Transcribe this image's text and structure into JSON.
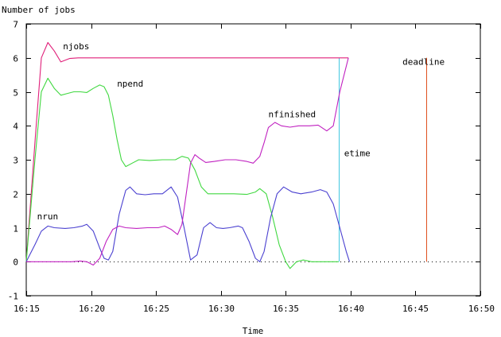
{
  "chart_data": {
    "type": "line",
    "title": "",
    "ylabel": "Number of jobs",
    "xlabel": "Time",
    "xlim": [
      "16:15",
      "16:50"
    ],
    "ylim": [
      -1,
      7
    ],
    "grid": false,
    "xticks": [
      "16:15",
      "16:20",
      "16:25",
      "16:30",
      "16:35",
      "16:40",
      "16:45",
      "16:50"
    ],
    "yticks": [
      "-1",
      "0",
      "1",
      "2",
      "3",
      "4",
      "5",
      "6",
      "7"
    ],
    "zero_line": "dotted",
    "series": [
      {
        "name": "njobs",
        "color": "#e0207a",
        "points": [
          [
            "16:15:00",
            0
          ],
          [
            "16:15:40",
            3.5
          ],
          [
            "16:16:10",
            6.0
          ],
          [
            "16:16:40",
            6.45
          ],
          [
            "16:17:10",
            6.2
          ],
          [
            "16:17:40",
            5.88
          ],
          [
            "16:18:20",
            5.98
          ],
          [
            "16:19:00",
            6.0
          ],
          [
            "16:39:50",
            6.0
          ]
        ]
      },
      {
        "name": "npend",
        "color": "#40d840",
        "points": [
          [
            "16:15:00",
            0
          ],
          [
            "16:15:40",
            3.0
          ],
          [
            "16:16:10",
            5.0
          ],
          [
            "16:16:40",
            5.4
          ],
          [
            "16:17:10",
            5.1
          ],
          [
            "16:17:40",
            4.9
          ],
          [
            "16:18:10",
            4.95
          ],
          [
            "16:18:40",
            5.0
          ],
          [
            "16:19:10",
            5.0
          ],
          [
            "16:19:40",
            4.98
          ],
          [
            "16:20:10",
            5.1
          ],
          [
            "16:20:40",
            5.2
          ],
          [
            "16:21:00",
            5.15
          ],
          [
            "16:21:20",
            4.9
          ],
          [
            "16:21:40",
            4.3
          ],
          [
            "16:22:00",
            3.6
          ],
          [
            "16:22:20",
            3.0
          ],
          [
            "16:22:40",
            2.8
          ],
          [
            "16:23:10",
            2.9
          ],
          [
            "16:23:40",
            3.0
          ],
          [
            "16:24:30",
            2.98
          ],
          [
            "16:25:30",
            3.0
          ],
          [
            "16:26:30",
            3.0
          ],
          [
            "16:27:00",
            3.1
          ],
          [
            "16:27:30",
            3.05
          ],
          [
            "16:28:00",
            2.7
          ],
          [
            "16:28:30",
            2.2
          ],
          [
            "16:29:00",
            2.0
          ],
          [
            "16:30:00",
            2.0
          ],
          [
            "16:31:00",
            2.0
          ],
          [
            "16:32:00",
            1.98
          ],
          [
            "16:32:40",
            2.05
          ],
          [
            "16:33:00",
            2.15
          ],
          [
            "16:33:30",
            2.0
          ],
          [
            "16:34:00",
            1.3
          ],
          [
            "16:34:30",
            0.5
          ],
          [
            "16:35:00",
            0.0
          ],
          [
            "16:35:20",
            -0.2
          ],
          [
            "16:35:50",
            0.0
          ],
          [
            "16:36:20",
            0.05
          ],
          [
            "16:37:00",
            0.0
          ],
          [
            "16:39:05",
            0.0
          ]
        ]
      },
      {
        "name": "nrun",
        "color": "#4a40d0",
        "points": [
          [
            "16:15:00",
            0
          ],
          [
            "16:15:40",
            0.5
          ],
          [
            "16:16:10",
            0.9
          ],
          [
            "16:16:40",
            1.05
          ],
          [
            "16:17:10",
            1.0
          ],
          [
            "16:18:00",
            0.98
          ],
          [
            "16:18:40",
            1.0
          ],
          [
            "16:19:20",
            1.05
          ],
          [
            "16:19:40",
            1.1
          ],
          [
            "16:20:10",
            0.9
          ],
          [
            "16:20:40",
            0.4
          ],
          [
            "16:21:00",
            0.1
          ],
          [
            "16:21:20",
            0.05
          ],
          [
            "16:21:40",
            0.3
          ],
          [
            "16:22:10",
            1.4
          ],
          [
            "16:22:40",
            2.1
          ],
          [
            "16:23:00",
            2.2
          ],
          [
            "16:23:30",
            2.0
          ],
          [
            "16:24:10",
            1.97
          ],
          [
            "16:24:50",
            2.0
          ],
          [
            "16:25:30",
            2.0
          ],
          [
            "16:26:10",
            2.2
          ],
          [
            "16:26:40",
            1.9
          ],
          [
            "16:27:10",
            1.0
          ],
          [
            "16:27:40",
            0.05
          ],
          [
            "16:28:10",
            0.2
          ],
          [
            "16:28:40",
            1.0
          ],
          [
            "16:29:10",
            1.15
          ],
          [
            "16:29:40",
            1.0
          ],
          [
            "16:30:10",
            0.98
          ],
          [
            "16:30:40",
            1.0
          ],
          [
            "16:31:20",
            1.05
          ],
          [
            "16:31:40",
            1.0
          ],
          [
            "16:32:10",
            0.6
          ],
          [
            "16:32:40",
            0.1
          ],
          [
            "16:33:00",
            0.0
          ],
          [
            "16:33:20",
            0.3
          ],
          [
            "16:33:50",
            1.3
          ],
          [
            "16:34:20",
            2.0
          ],
          [
            "16:34:50",
            2.2
          ],
          [
            "16:35:30",
            2.05
          ],
          [
            "16:36:10",
            2.0
          ],
          [
            "16:37:00",
            2.05
          ],
          [
            "16:37:40",
            2.12
          ],
          [
            "16:38:10",
            2.05
          ],
          [
            "16:38:40",
            1.7
          ],
          [
            "16:39:10",
            1.0
          ],
          [
            "16:39:40",
            0.3
          ],
          [
            "16:39:55",
            0.0
          ]
        ]
      },
      {
        "name": "nfinished",
        "color": "#c020c0",
        "points": [
          [
            "16:15:00",
            0
          ],
          [
            "16:18:30",
            0.0
          ],
          [
            "16:19:10",
            0.02
          ],
          [
            "16:19:40",
            0.0
          ],
          [
            "16:20:10",
            -0.1
          ],
          [
            "16:20:40",
            0.1
          ],
          [
            "16:21:10",
            0.6
          ],
          [
            "16:21:40",
            0.95
          ],
          [
            "16:22:10",
            1.05
          ],
          [
            "16:22:40",
            1.0
          ],
          [
            "16:23:30",
            0.98
          ],
          [
            "16:24:20",
            1.0
          ],
          [
            "16:25:10",
            1.0
          ],
          [
            "16:25:40",
            1.05
          ],
          [
            "16:26:10",
            0.95
          ],
          [
            "16:26:40",
            0.8
          ],
          [
            "16:27:00",
            1.1
          ],
          [
            "16:27:20",
            2.0
          ],
          [
            "16:27:40",
            2.9
          ],
          [
            "16:28:00",
            3.15
          ],
          [
            "16:28:20",
            3.05
          ],
          [
            "16:28:50",
            2.92
          ],
          [
            "16:29:30",
            2.95
          ],
          [
            "16:30:20",
            3.0
          ],
          [
            "16:31:10",
            3.0
          ],
          [
            "16:32:00",
            2.95
          ],
          [
            "16:32:30",
            2.9
          ],
          [
            "16:33:00",
            3.1
          ],
          [
            "16:33:20",
            3.5
          ],
          [
            "16:33:40",
            3.95
          ],
          [
            "16:34:10",
            4.1
          ],
          [
            "16:34:40",
            4.0
          ],
          [
            "16:35:20",
            3.96
          ],
          [
            "16:36:00",
            4.0
          ],
          [
            "16:36:50",
            4.0
          ],
          [
            "16:37:30",
            4.02
          ],
          [
            "16:38:10",
            3.85
          ],
          [
            "16:38:40",
            4.0
          ],
          [
            "16:39:10",
            5.0
          ],
          [
            "16:39:50",
            6.0
          ]
        ]
      }
    ],
    "markers": [
      {
        "name": "etime",
        "color": "#40c8e0",
        "x": "16:39:05",
        "y_from": 0,
        "y_to": 6
      },
      {
        "name": "deadline",
        "color": "#e05020",
        "x": "16:45:50",
        "y_from": 0,
        "y_to": 6
      }
    ],
    "series_labels": [
      "njobs",
      "npend",
      "nfinished",
      "nrun"
    ],
    "marker_labels": [
      "etime",
      "deadline"
    ]
  }
}
